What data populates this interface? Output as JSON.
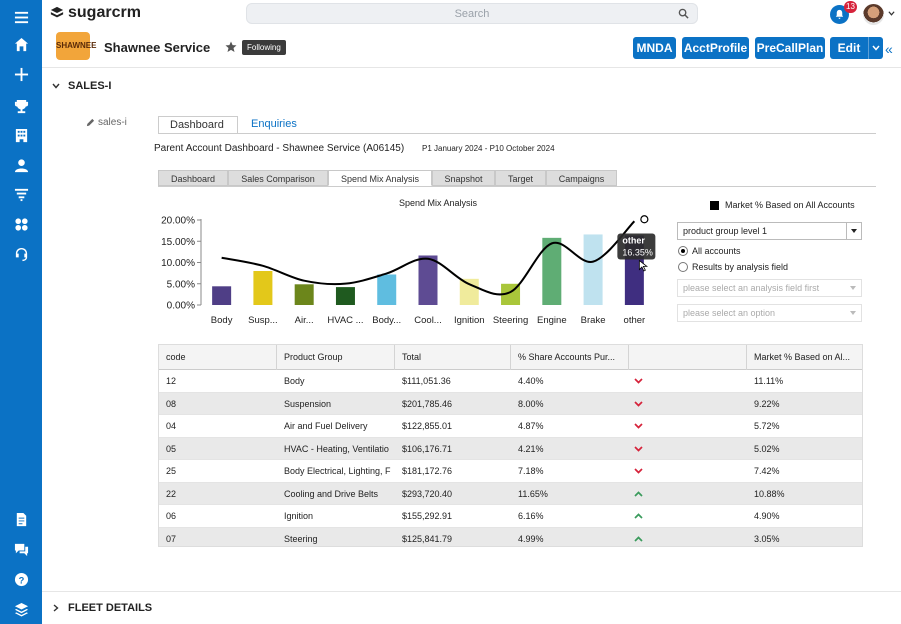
{
  "app": {
    "name": "sugarcrm",
    "search_placeholder": "Search",
    "notifications_count": "13"
  },
  "record": {
    "title": "Shawnee Service",
    "logo_text": "SHAWNEE",
    "follow_label": "Following",
    "buttons": [
      "MNDA",
      "AcctProfile",
      "PreCallPlan",
      "Edit"
    ]
  },
  "panels": {
    "sales": "SALES-I",
    "fleet": "FLEET DETAILS"
  },
  "sales_label": "sales-i",
  "tabs": {
    "dashboard": "Dashboard",
    "enquiries": "Enquiries"
  },
  "dashboard": {
    "title": "Parent Account Dashboard - Shawnee Service (A06145)",
    "period": "P1 January 2024 - P10 October 2024",
    "subtabs": [
      "Dashboard",
      "Sales Comparison",
      "Spend Mix Analysis",
      "Snapshot",
      "Target",
      "Campaigns"
    ],
    "active_subtab": "Spend Mix Analysis"
  },
  "controls": {
    "legend_label": "Market % Based on All Accounts",
    "group_select": "product group level 1",
    "radio_all": "All accounts",
    "radio_field": "Results by analysis field",
    "field_placeholder": "please select an analysis field first",
    "option_placeholder": "please select an option"
  },
  "chart_data": {
    "type": "bar",
    "title": "Spend Mix Analysis",
    "categories": [
      "Body",
      "Susp...",
      "Air...",
      "HVAC ...",
      "Body...",
      "Cool...",
      "Ignition",
      "Steering",
      "Engine",
      "Brake",
      "other"
    ],
    "ylim": [
      0,
      20
    ],
    "yticks": [
      "0.00%",
      "5.00%",
      "10.00%",
      "15.00%",
      "20.00%"
    ],
    "colors": [
      "#4f3e86",
      "#e3c81a",
      "#6c861b",
      "#1f5a1f",
      "#5fbde0",
      "#5e4b93",
      "#f0eb9c",
      "#a9c63a",
      "#5fad74",
      "#bfe2ef",
      "#3f2e80"
    ],
    "series": [
      {
        "values": [
          4.4,
          8.0,
          4.87,
          4.21,
          7.18,
          11.65,
          6.16,
          4.99,
          15.8,
          16.6,
          16.35
        ]
      },
      {
        "name": "Market % Based on All Accounts",
        "type": "line",
        "values": [
          11.11,
          9.22,
          5.72,
          5.02,
          7.42,
          10.88,
          4.9,
          3.05,
          14.5,
          10.2,
          19.7
        ]
      }
    ],
    "tooltip": {
      "label": "other",
      "value": "16.35%"
    }
  },
  "table": {
    "columns": [
      "code",
      "Product Group",
      "Total",
      "% Share Accounts Pur...",
      "",
      "Market % Based on Al..."
    ],
    "rows": [
      {
        "code": "12",
        "group": "Body",
        "total": "$111,051.36",
        "share": "4.40%",
        "trend": "down",
        "market": "11.11%"
      },
      {
        "code": "08",
        "group": "Suspension",
        "total": "$201,785.46",
        "share": "8.00%",
        "trend": "down",
        "market": "9.22%"
      },
      {
        "code": "04",
        "group": "Air and Fuel Delivery",
        "total": "$122,855.01",
        "share": "4.87%",
        "trend": "down",
        "market": "5.72%"
      },
      {
        "code": "05",
        "group": "HVAC - Heating, Ventilatio",
        "total": "$106,176.71",
        "share": "4.21%",
        "trend": "down",
        "market": "5.02%"
      },
      {
        "code": "25",
        "group": "Body Electrical, Lighting, F",
        "total": "$181,172.76",
        "share": "7.18%",
        "trend": "down",
        "market": "7.42%"
      },
      {
        "code": "22",
        "group": "Cooling and Drive Belts",
        "total": "$293,720.40",
        "share": "11.65%",
        "trend": "up",
        "market": "10.88%"
      },
      {
        "code": "06",
        "group": "Ignition",
        "total": "$155,292.91",
        "share": "6.16%",
        "trend": "up",
        "market": "4.90%"
      },
      {
        "code": "07",
        "group": "Steering",
        "total": "$125,841.79",
        "share": "4.99%",
        "trend": "up",
        "market": "3.05%"
      }
    ]
  },
  "colors": {
    "brand_blue": "#0b72c5",
    "trend_down": "#d6233b",
    "trend_up": "#3a9b5c"
  }
}
